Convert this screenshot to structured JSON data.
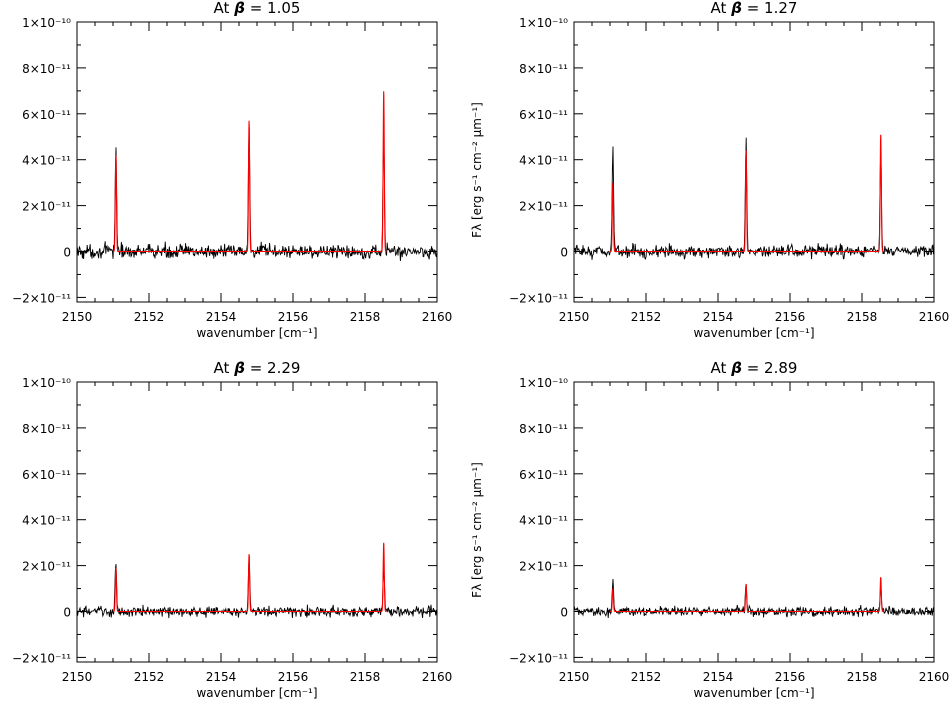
{
  "chart_data": [
    {
      "type": "line",
      "title": "At β = 1.05",
      "title_prefix": "At",
      "title_symbol": "β",
      "title_value": "= 1.05",
      "xlabel": "wavenumber [cm⁻¹]",
      "ylabel": "",
      "xlim": [
        2150,
        2160
      ],
      "ylim": [
        -2.2e-11,
        1e-10
      ],
      "x_ticks": [
        2150,
        2152,
        2154,
        2156,
        2158,
        2160
      ],
      "y_ticks": [
        {
          "value": -2e-11,
          "label": "−2×10⁻¹¹"
        },
        {
          "value": 0,
          "label": "0"
        },
        {
          "value": 2e-11,
          "label": "2×10⁻¹¹"
        },
        {
          "value": 4e-11,
          "label": "4×10⁻¹¹"
        },
        {
          "value": 6e-11,
          "label": "6×10⁻¹¹"
        },
        {
          "value": 8e-11,
          "label": "8×10⁻¹¹"
        },
        {
          "value": 1e-10,
          "label": "1×10⁻¹⁰"
        }
      ],
      "grid": false,
      "series": [
        {
          "role": "observed",
          "color": "#000000",
          "noise": 3e-12,
          "baseline_bump": 0,
          "peaks": [
            {
              "x": 2151.08,
              "height": 4.6e-11
            },
            {
              "x": 2154.78,
              "height": 5.5e-11
            },
            {
              "x": 2158.52,
              "height": 5e-11
            }
          ]
        },
        {
          "role": "model",
          "color": "#ff0000",
          "peaks": [
            {
              "x": 2151.08,
              "height": 4.2e-11
            },
            {
              "x": 2154.78,
              "height": 5.7e-11
            },
            {
              "x": 2158.52,
              "height": 7e-11
            }
          ]
        }
      ]
    },
    {
      "type": "line",
      "title": "At β = 1.27",
      "title_prefix": "At",
      "title_symbol": "β",
      "title_value": "= 1.27",
      "xlabel": "wavenumber [cm⁻¹]",
      "ylabel": "Fλ [erg s⁻¹ cm⁻² μm⁻¹]",
      "xlim": [
        2150,
        2160
      ],
      "ylim": [
        -2.2e-11,
        1e-10
      ],
      "x_ticks": [
        2150,
        2152,
        2154,
        2156,
        2158,
        2160
      ],
      "y_ticks": [
        {
          "value": -2e-11,
          "label": "−2×10⁻¹¹"
        },
        {
          "value": 0,
          "label": "0"
        },
        {
          "value": 2e-11,
          "label": "2×10⁻¹¹"
        },
        {
          "value": 4e-11,
          "label": "4×10⁻¹¹"
        },
        {
          "value": 6e-11,
          "label": "6×10⁻¹¹"
        },
        {
          "value": 8e-11,
          "label": "8×10⁻¹¹"
        },
        {
          "value": 1e-10,
          "label": "1×10⁻¹⁰"
        }
      ],
      "grid": false,
      "series": [
        {
          "role": "observed",
          "color": "#000000",
          "noise": 2.6e-12,
          "baseline_bump": 0,
          "peaks": [
            {
              "x": 2151.08,
              "height": 4.7e-11
            },
            {
              "x": 2154.78,
              "height": 5e-11
            },
            {
              "x": 2158.52,
              "height": 4.4e-11
            }
          ]
        },
        {
          "role": "model",
          "color": "#ff0000",
          "peaks": [
            {
              "x": 2151.08,
              "height": 3e-11
            },
            {
              "x": 2154.78,
              "height": 4.4e-11
            },
            {
              "x": 2158.52,
              "height": 5.1e-11
            }
          ]
        }
      ]
    },
    {
      "type": "line",
      "title": "At β = 2.29",
      "title_prefix": "At",
      "title_symbol": "β",
      "title_value": "= 2.29",
      "xlabel": "wavenumber [cm⁻¹]",
      "ylabel": "",
      "xlim": [
        2150,
        2160
      ],
      "ylim": [
        -2.2e-11,
        1e-10
      ],
      "x_ticks": [
        2150,
        2152,
        2154,
        2156,
        2158,
        2160
      ],
      "y_ticks": [
        {
          "value": -2e-11,
          "label": "−2×10⁻¹¹"
        },
        {
          "value": 0,
          "label": "0"
        },
        {
          "value": 2e-11,
          "label": "2×10⁻¹¹"
        },
        {
          "value": 4e-11,
          "label": "4×10⁻¹¹"
        },
        {
          "value": 6e-11,
          "label": "6×10⁻¹¹"
        },
        {
          "value": 8e-11,
          "label": "8×10⁻¹¹"
        },
        {
          "value": 1e-10,
          "label": "1×10⁻¹⁰"
        }
      ],
      "grid": false,
      "series": [
        {
          "role": "observed",
          "color": "#000000",
          "noise": 2.2e-12,
          "baseline_bump": 0,
          "peaks": [
            {
              "x": 2151.08,
              "height": 2.2e-11
            },
            {
              "x": 2154.78,
              "height": 2.4e-11
            },
            {
              "x": 2158.52,
              "height": 2e-11
            }
          ]
        },
        {
          "role": "model",
          "color": "#ff0000",
          "peaks": [
            {
              "x": 2151.08,
              "height": 1.9e-11
            },
            {
              "x": 2154.78,
              "height": 2.5e-11
            },
            {
              "x": 2158.52,
              "height": 3e-11
            }
          ]
        }
      ]
    },
    {
      "type": "line",
      "title": "At β = 2.89",
      "title_prefix": "At",
      "title_symbol": "β",
      "title_value": "= 2.89",
      "xlabel": "wavenumber [cm⁻¹]",
      "ylabel": "Fλ [erg s⁻¹ cm⁻² μm⁻¹]",
      "xlim": [
        2150,
        2160
      ],
      "ylim": [
        -2.2e-11,
        1e-10
      ],
      "x_ticks": [
        2150,
        2152,
        2154,
        2156,
        2158,
        2160
      ],
      "y_ticks": [
        {
          "value": -2e-11,
          "label": "−2×10⁻¹¹"
        },
        {
          "value": 0,
          "label": "0"
        },
        {
          "value": 2e-11,
          "label": "2×10⁻¹¹"
        },
        {
          "value": 4e-11,
          "label": "4×10⁻¹¹"
        },
        {
          "value": 6e-11,
          "label": "6×10⁻¹¹"
        },
        {
          "value": 8e-11,
          "label": "8×10⁻¹¹"
        },
        {
          "value": 1e-10,
          "label": "1×10⁻¹⁰"
        }
      ],
      "grid": false,
      "series": [
        {
          "role": "observed",
          "color": "#000000",
          "noise": 2e-12,
          "baseline_bump": 0,
          "peaks": [
            {
              "x": 2151.08,
              "height": 1.4e-11
            },
            {
              "x": 2154.78,
              "height": 1.3e-11
            },
            {
              "x": 2158.52,
              "height": 1.2e-11
            }
          ]
        },
        {
          "role": "model",
          "color": "#ff0000",
          "peaks": [
            {
              "x": 2151.08,
              "height": 1e-11
            },
            {
              "x": 2154.78,
              "height": 1.2e-11
            },
            {
              "x": 2158.52,
              "height": 1.5e-11
            }
          ]
        }
      ]
    }
  ]
}
